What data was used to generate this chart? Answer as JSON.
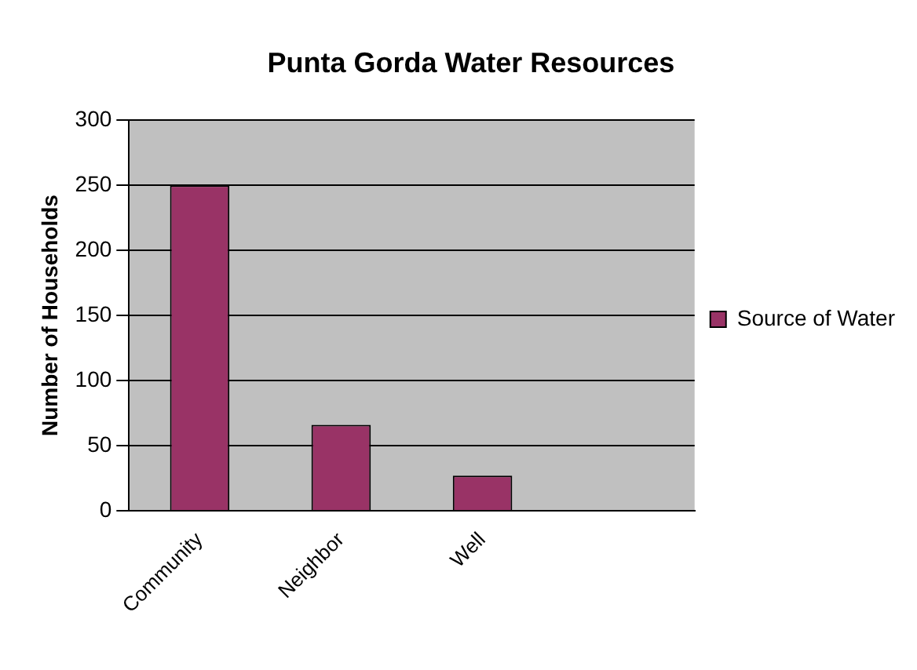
{
  "chart_data": {
    "type": "bar",
    "title": "Punta Gorda Water Resources",
    "ylabel": "Number of Households",
    "categories": [
      "Community",
      "Neighbor",
      "Well",
      null
    ],
    "series": [
      {
        "name": "Source of Water",
        "color": "#993366",
        "values": [
          250,
          66,
          27,
          null
        ]
      }
    ],
    "ylim": [
      0,
      300
    ],
    "yticks": [
      0,
      50,
      100,
      150,
      200,
      250,
      300
    ],
    "grid": "y",
    "legend": "right"
  }
}
